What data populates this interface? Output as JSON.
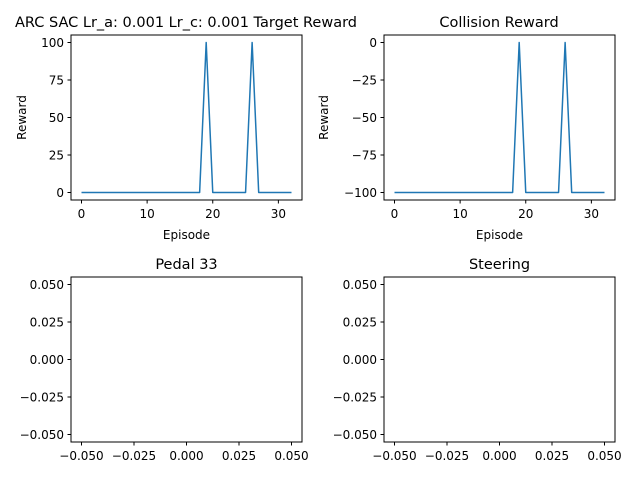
{
  "figure": {
    "series_color": "#1f77b4"
  },
  "chart_data": [
    {
      "type": "line",
      "title": "ARC SAC Lr_a: 0.001 Lr_c: 0.001 Target Reward",
      "xlabel": "Episode",
      "ylabel": "Reward",
      "xlim": [
        -1.6,
        33.6
      ],
      "ylim": [
        -5,
        105
      ],
      "xticks": [
        0,
        10,
        20,
        30
      ],
      "yticks": [
        0,
        25,
        50,
        75,
        100
      ],
      "xticklabels": [
        "0",
        "10",
        "20",
        "30"
      ],
      "yticklabels": [
        "0",
        "25",
        "50",
        "75",
        "100"
      ],
      "x": [
        0,
        1,
        2,
        3,
        4,
        5,
        6,
        7,
        8,
        9,
        10,
        11,
        12,
        13,
        14,
        15,
        16,
        17,
        18,
        19,
        20,
        21,
        22,
        23,
        24,
        25,
        26,
        27,
        28,
        29,
        30,
        31,
        32
      ],
      "series": [
        {
          "values": [
            0,
            0,
            0,
            0,
            0,
            0,
            0,
            0,
            0,
            0,
            0,
            0,
            0,
            0,
            0,
            0,
            0,
            0,
            0,
            100,
            0,
            0,
            0,
            0,
            0,
            0,
            100,
            0,
            0,
            0,
            0,
            0,
            0
          ]
        }
      ],
      "grid": false
    },
    {
      "type": "line",
      "title": "Collision Reward",
      "xlabel": "Episode",
      "ylabel": "Reward",
      "xlim": [
        -1.6,
        33.6
      ],
      "ylim": [
        -105,
        5
      ],
      "xticks": [
        0,
        10,
        20,
        30
      ],
      "yticks": [
        0,
        -25,
        -50,
        -75,
        -100
      ],
      "xticklabels": [
        "0",
        "10",
        "20",
        "30"
      ],
      "yticklabels": [
        "0",
        "−25",
        "−50",
        "−75",
        "−100"
      ],
      "x": [
        0,
        1,
        2,
        3,
        4,
        5,
        6,
        7,
        8,
        9,
        10,
        11,
        12,
        13,
        14,
        15,
        16,
        17,
        18,
        19,
        20,
        21,
        22,
        23,
        24,
        25,
        26,
        27,
        28,
        29,
        30,
        31,
        32
      ],
      "series": [
        {
          "values": [
            -100,
            -100,
            -100,
            -100,
            -100,
            -100,
            -100,
            -100,
            -100,
            -100,
            -100,
            -100,
            -100,
            -100,
            -100,
            -100,
            -100,
            -100,
            -100,
            0,
            -100,
            -100,
            -100,
            -100,
            -100,
            -100,
            0,
            -100,
            -100,
            -100,
            -100,
            -100,
            -100
          ]
        }
      ],
      "grid": false
    },
    {
      "type": "line",
      "title": "Pedal 33",
      "xlabel": "",
      "ylabel": "",
      "xlim": [
        -0.055,
        0.055
      ],
      "ylim": [
        -0.055,
        0.055
      ],
      "xticks": [
        -0.05,
        -0.025,
        0.0,
        0.025,
        0.05
      ],
      "yticks": [
        -0.05,
        -0.025,
        0.0,
        0.025,
        0.05
      ],
      "xticklabels": [
        "−0.050",
        "−0.025",
        "0.000",
        "0.025",
        "0.050"
      ],
      "yticklabels": [
        "−0.050",
        "−0.025",
        "0.000",
        "0.025",
        "0.050"
      ],
      "x": [],
      "series": [],
      "grid": false
    },
    {
      "type": "line",
      "title": "Steering",
      "xlabel": "",
      "ylabel": "",
      "xlim": [
        -0.055,
        0.055
      ],
      "ylim": [
        -0.055,
        0.055
      ],
      "xticks": [
        -0.05,
        -0.025,
        0.0,
        0.025,
        0.05
      ],
      "yticks": [
        -0.05,
        -0.025,
        0.0,
        0.025,
        0.05
      ],
      "xticklabels": [
        "−0.050",
        "−0.025",
        "0.000",
        "0.025",
        "0.050"
      ],
      "yticklabels": [
        "−0.050",
        "−0.025",
        "0.000",
        "0.025",
        "0.050"
      ],
      "x": [],
      "series": [],
      "grid": false
    }
  ]
}
